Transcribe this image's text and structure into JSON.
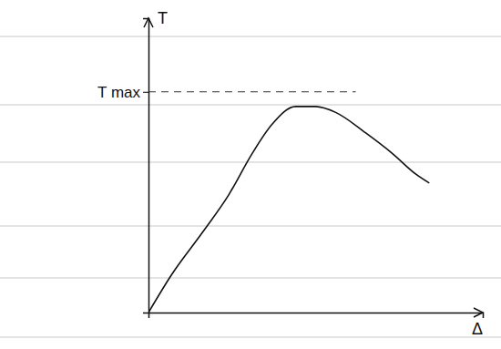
{
  "chart_data": {
    "type": "line",
    "y_label": "T",
    "x_label": "Δ",
    "x": [
      0,
      7,
      16,
      24,
      31,
      37,
      44,
      50,
      56,
      65,
      73,
      80,
      84
    ],
    "values": [
      0,
      13,
      27,
      40,
      54,
      64,
      70,
      70,
      68,
      61,
      54,
      47,
      44
    ],
    "color": "#111111",
    "xlim": [
      0,
      100
    ],
    "ylim": [
      0,
      100
    ],
    "xticks": [],
    "yticks": [
      {
        "value": 75,
        "label": "T max"
      }
    ],
    "tick_labels": "y",
    "grid": true
  }
}
